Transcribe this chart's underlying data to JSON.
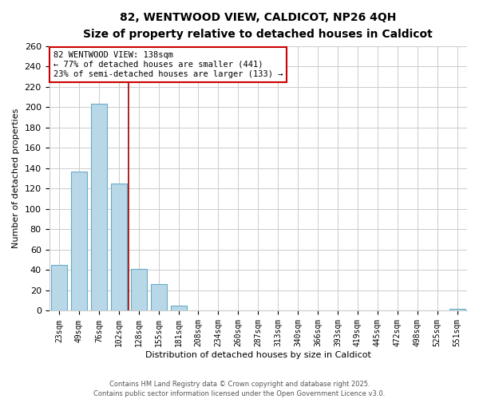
{
  "title_line1": "82, WENTWOOD VIEW, CALDICOT, NP26 4QH",
  "title_line2": "Size of property relative to detached houses in Caldicot",
  "xlabel": "Distribution of detached houses by size in Caldicot",
  "ylabel": "Number of detached properties",
  "bar_color": "#b8d8e8",
  "bar_edge_color": "#6aaac8",
  "categories": [
    "23sqm",
    "49sqm",
    "76sqm",
    "102sqm",
    "128sqm",
    "155sqm",
    "181sqm",
    "208sqm",
    "234sqm",
    "260sqm",
    "287sqm",
    "313sqm",
    "340sqm",
    "366sqm",
    "393sqm",
    "419sqm",
    "445sqm",
    "472sqm",
    "498sqm",
    "525sqm",
    "551sqm"
  ],
  "values": [
    45,
    137,
    203,
    125,
    41,
    26,
    5,
    0,
    0,
    0,
    0,
    0,
    0,
    0,
    0,
    0,
    0,
    0,
    0,
    0,
    2
  ],
  "ylim": [
    0,
    260
  ],
  "yticks": [
    0,
    20,
    40,
    60,
    80,
    100,
    120,
    140,
    160,
    180,
    200,
    220,
    240,
    260
  ],
  "vline_color": "#990000",
  "annotation_box_text": "82 WENTWOOD VIEW: 138sqm\n← 77% of detached houses are smaller (441)\n23% of semi-detached houses are larger (133) →",
  "footer_text": "Contains HM Land Registry data © Crown copyright and database right 2025.\nContains public sector information licensed under the Open Government Licence v3.0.",
  "background_color": "#ffffff",
  "grid_color": "#cccccc"
}
